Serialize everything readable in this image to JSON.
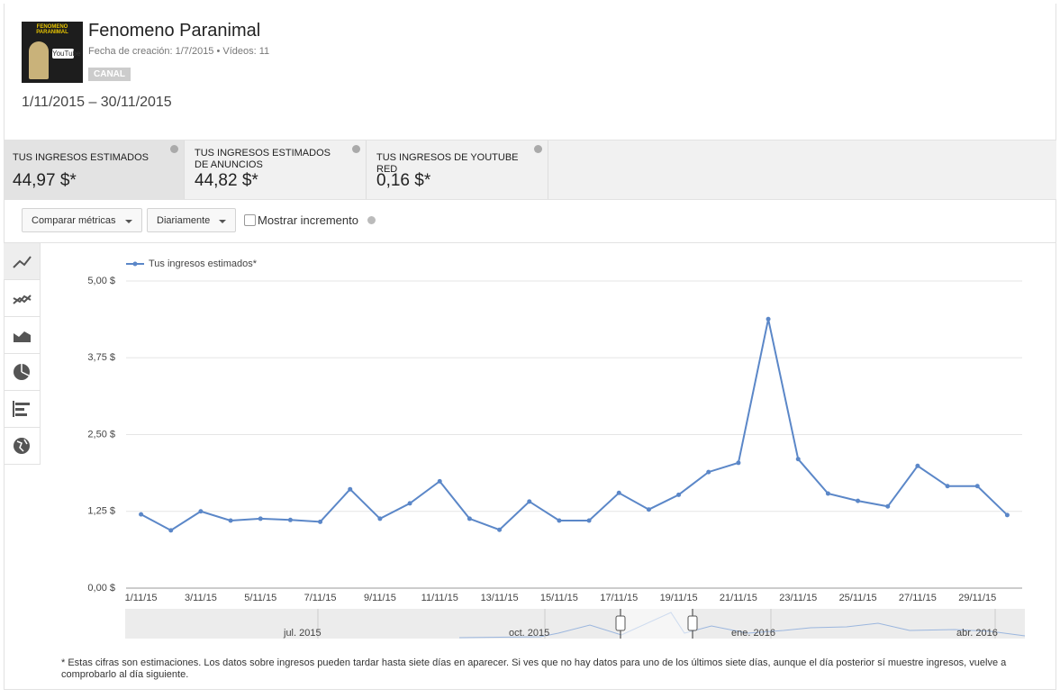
{
  "channel": {
    "logo_title": "FENOMENO PARANIMAL",
    "logo_badge": "YouTube",
    "name": "Fenomeno Paranimal",
    "meta": "Fecha de creación: 1/7/2015 • Vídeos: 11",
    "badge": "CANAL"
  },
  "date_range": "1/11/2015 – 30/11/2015",
  "metrics": [
    {
      "label": "TUS INGRESOS ESTIMADOS",
      "value": "44,97 $*"
    },
    {
      "label": "TUS INGRESOS ESTIMADOS DE ANUNCIOS",
      "value": "44,82 $*"
    },
    {
      "label": "TUS INGRESOS DE YOUTUBE RED",
      "value": "0,16 $*"
    }
  ],
  "controls": {
    "compare": "Comparar métricas",
    "period": "Diariamente",
    "increment": "Mostrar incremento"
  },
  "chart_data": {
    "type": "line",
    "categories": [
      "1/11/15",
      null,
      "3/11/15",
      null,
      "5/11/15",
      null,
      "7/11/15",
      null,
      "9/11/15",
      null,
      "11/11/15",
      null,
      "13/11/15",
      null,
      "15/11/15",
      null,
      "17/11/15",
      null,
      "19/11/15",
      null,
      "21/11/15",
      null,
      "23/11/15",
      null,
      "25/11/15",
      null,
      "27/11/15",
      null,
      "29/11/15",
      null
    ],
    "series": [
      {
        "name": "Tus ingresos estimados*",
        "color": "#5b87c8",
        "values": [
          1.2,
          0.94,
          1.25,
          1.1,
          1.13,
          1.11,
          1.08,
          1.61,
          1.13,
          1.38,
          1.74,
          1.13,
          0.95,
          1.41,
          1.1,
          1.1,
          1.55,
          1.28,
          1.52,
          1.89,
          2.04,
          4.38,
          2.1,
          1.54,
          1.42,
          1.33,
          1.99,
          1.66,
          1.66,
          1.19
        ]
      }
    ],
    "ylim": [
      0,
      5
    ],
    "yticks": [
      {
        "value": 0,
        "label": "0,00 $"
      },
      {
        "value": 1.25,
        "label": "1,25 $"
      },
      {
        "value": 2.5,
        "label": "2,50 $"
      },
      {
        "value": 3.75,
        "label": "3,75 $"
      },
      {
        "value": 5,
        "label": "5,00 $"
      }
    ],
    "grid": true,
    "legend": "top-left"
  },
  "navigator": [
    "jul. 2015",
    "oct. 2015",
    "ene. 2016",
    "abr. 2016"
  ],
  "footnote": "* Estas cifras son estimaciones. Los datos sobre ingresos pueden tardar hasta siete días en aparecer. Si ves que no hay datos para uno de los últimos siete días, aunque el día posterior sí muestre ingresos, vuelve a comprobarlo al día siguiente."
}
